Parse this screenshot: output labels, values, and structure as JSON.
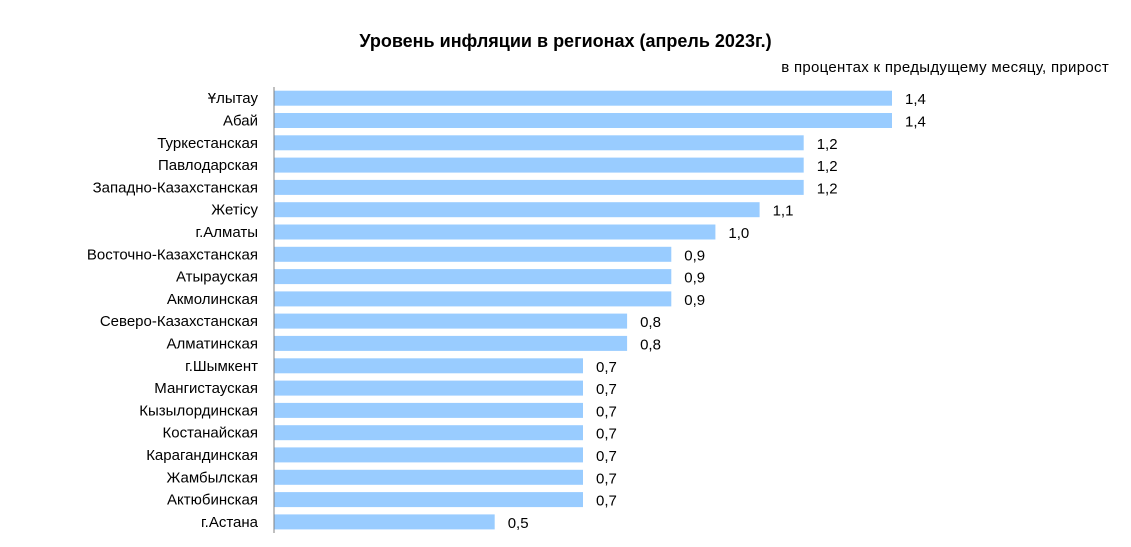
{
  "chart_data": {
    "type": "bar",
    "orientation": "horizontal",
    "title": "Уровень инфляции в регионах (апрель 2023г.)",
    "subtitle": "в процентах к предыдущему месяцу, прирост",
    "categories": [
      "Ұлытау",
      "Абай",
      "Туркестанская",
      "Павлодарская",
      "Западно-Казахстанская",
      "Жетісу",
      "г.Алматы",
      "Восточно-Казахстанская",
      "Атырауская",
      "Акмолинская",
      "Северо-Казахстанская",
      "Алматинская",
      "г.Шымкент",
      "Мангистауская",
      "Кызылординская",
      "Костанайская",
      "Карагандинская",
      "Жамбылская",
      "Актюбинская",
      "г.Астана"
    ],
    "values": [
      1.4,
      1.4,
      1.2,
      1.2,
      1.2,
      1.1,
      1.0,
      0.9,
      0.9,
      0.9,
      0.8,
      0.8,
      0.7,
      0.7,
      0.7,
      0.7,
      0.7,
      0.7,
      0.7,
      0.5
    ],
    "value_labels": [
      "1,4",
      "1,4",
      "1,2",
      "1,2",
      "1,2",
      "1,1",
      "1,0",
      "0,9",
      "0,9",
      "0,9",
      "0,8",
      "0,8",
      "0,7",
      "0,7",
      "0,7",
      "0,7",
      "0,7",
      "0,7",
      "0,7",
      "0,5"
    ],
    "xlim": [
      0,
      1.4
    ],
    "grid": false,
    "legend": "none",
    "colors": {
      "bar": "#99CCFF",
      "axis": "#808080"
    }
  }
}
